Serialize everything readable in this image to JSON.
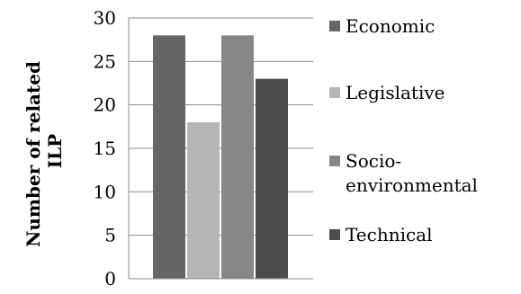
{
  "chart_data": {
    "type": "bar",
    "ylabel": [
      "Number of related",
      "ILP"
    ],
    "ylim": [
      0,
      30
    ],
    "yticks": [
      0,
      5,
      10,
      15,
      20,
      25,
      30
    ],
    "grid": true,
    "legend_position": "right",
    "series": [
      {
        "name": "Economic",
        "values": [
          28
        ],
        "color": "#666666"
      },
      {
        "name": "Legislative",
        "values": [
          18
        ],
        "color": "#b5b5b5"
      },
      {
        "name": "Socio-environmental",
        "name_lines": [
          "Socio-",
          "environmental"
        ],
        "values": [
          28
        ],
        "color": "#878787"
      },
      {
        "name": "Technical",
        "values": [
          23
        ],
        "color": "#4d4d4d"
      }
    ]
  }
}
